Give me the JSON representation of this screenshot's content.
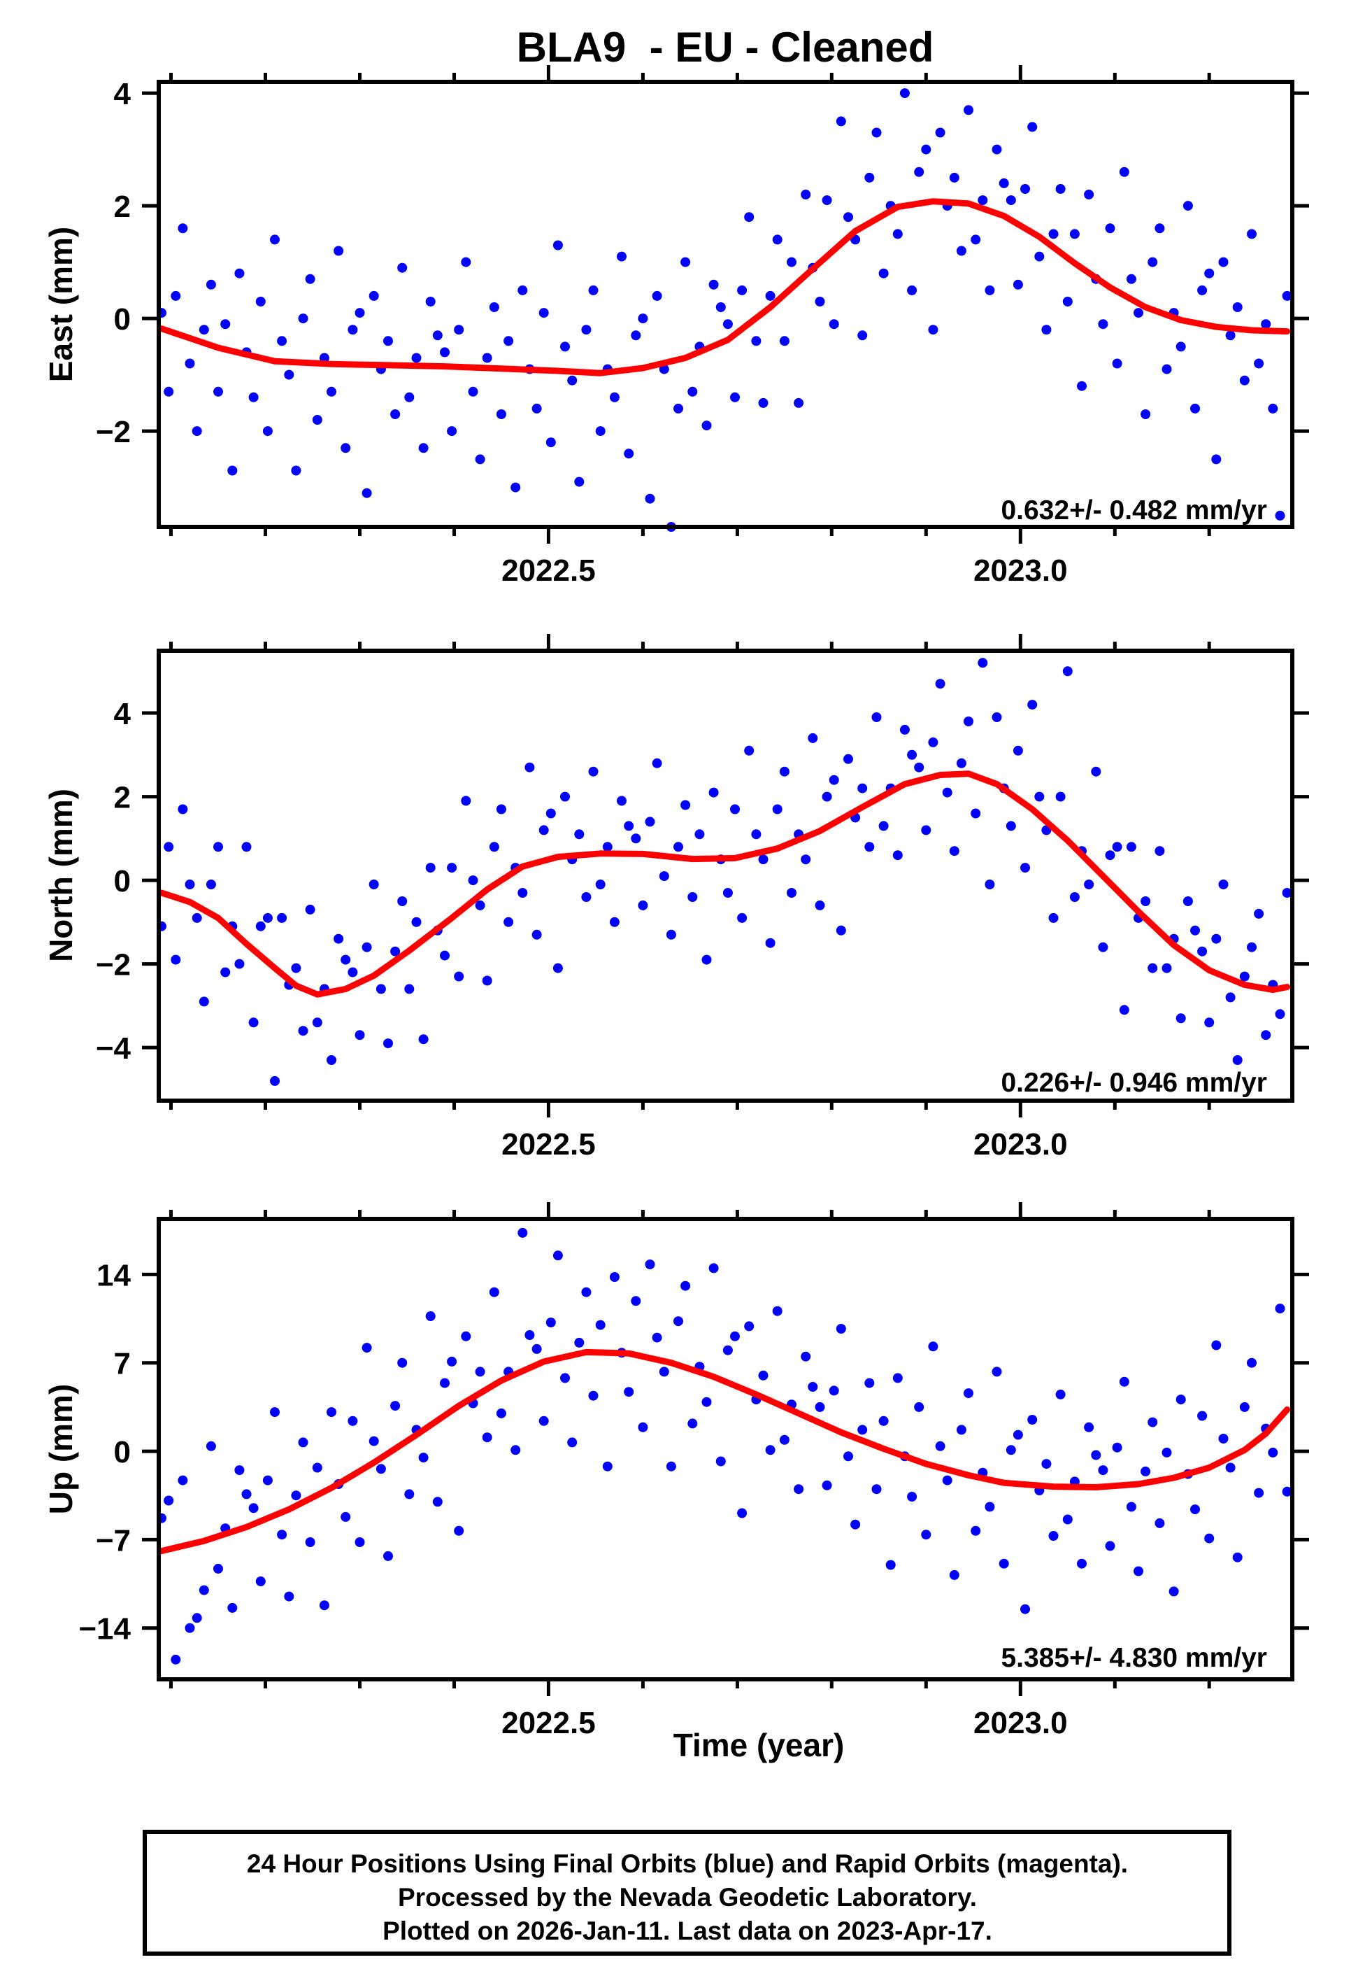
{
  "title": "BLA9  - EU - Cleaned",
  "time_axis_label": "Time (year)",
  "colors": {
    "points": "#0000ff",
    "trend": "#ff0000",
    "frame": "#000000",
    "background": "#ffffff"
  },
  "footer": {
    "line1": "24 Hour Positions Using Final Orbits (blue) and Rapid Orbits (magenta).",
    "line2": "Processed by the Nevada Geodetic Laboratory.",
    "line3": "Plotted on 2026-Jan-11. Last data on 2023-Apr-17."
  },
  "chart_data": [
    {
      "type": "scatter",
      "name": "east",
      "ylabel": "East (mm)",
      "rate_label": "0.632+/- 0.482 mm/yr",
      "xlim": [
        2022.087,
        2023.288
      ],
      "ylim": [
        -3.7,
        4.2
      ],
      "xticks_major": [
        2022.5,
        2023.0
      ],
      "xtick_labels": [
        "2022.5",
        "2023.0"
      ],
      "xticks_minor": [
        2022.1,
        2022.2,
        2022.3,
        2022.4,
        2022.6,
        2022.7,
        2022.8,
        2022.9,
        2023.1,
        2023.2
      ],
      "ytick_values": [
        4,
        2,
        0,
        -2
      ],
      "ytick_labels": [
        "4",
        "2",
        "0",
        "−2"
      ],
      "trend": [
        [
          2022.09,
          -0.18
        ],
        [
          2022.15,
          -0.52
        ],
        [
          2022.21,
          -0.76
        ],
        [
          2022.27,
          -0.81
        ],
        [
          2022.33,
          -0.83
        ],
        [
          2022.39,
          -0.85
        ],
        [
          2022.45,
          -0.89
        ],
        [
          2022.51,
          -0.93
        ],
        [
          2022.555,
          -0.97
        ],
        [
          2022.6,
          -0.88
        ],
        [
          2022.645,
          -0.7
        ],
        [
          2022.69,
          -0.38
        ],
        [
          2022.735,
          0.2
        ],
        [
          2022.78,
          0.88
        ],
        [
          2022.825,
          1.55
        ],
        [
          2022.87,
          1.98
        ],
        [
          2022.9075,
          2.08
        ],
        [
          2022.945,
          2.04
        ],
        [
          2022.9825,
          1.82
        ],
        [
          2023.02,
          1.45
        ],
        [
          2023.0575,
          0.98
        ],
        [
          2023.095,
          0.55
        ],
        [
          2023.1325,
          0.2
        ],
        [
          2023.17,
          -0.03
        ],
        [
          2023.2075,
          -0.15
        ],
        [
          2023.245,
          -0.21
        ],
        [
          2023.2825,
          -0.23
        ]
      ],
      "points": {
        "t0": 2022.09,
        "dt": 0.0075,
        "values": [
          0.1,
          -1.3,
          0.4,
          1.6,
          -0.8,
          -2.0,
          -0.2,
          0.6,
          -1.3,
          -0.1,
          -2.7,
          0.8,
          -0.6,
          -1.4,
          0.3,
          -2.0,
          1.4,
          -0.4,
          -1.0,
          -2.7,
          0.0,
          0.7,
          -1.8,
          -0.7,
          -1.3,
          1.2,
          -2.3,
          -0.2,
          0.1,
          -3.1,
          0.4,
          -0.9,
          -0.4,
          -1.7,
          0.9,
          -1.4,
          -0.7,
          -2.3,
          0.3,
          -0.3,
          -0.6,
          -2.0,
          -0.2,
          1.0,
          -1.3,
          -2.5,
          -0.7,
          0.2,
          -1.7,
          -0.4,
          -3.0,
          0.5,
          -0.9,
          -1.6,
          0.1,
          -2.2,
          1.3,
          -0.5,
          -1.1,
          -2.9,
          -0.2,
          0.5,
          -2.0,
          -0.9,
          -1.4,
          1.1,
          -2.4,
          -0.3,
          0.0,
          -3.2,
          0.4,
          -0.9,
          -3.7,
          -1.6,
          1.0,
          -1.3,
          -0.5,
          -1.9,
          0.6,
          0.2,
          -0.1,
          -1.4,
          0.5,
          1.8,
          -0.4,
          -1.5,
          0.4,
          1.4,
          -0.4,
          1.0,
          -1.5,
          2.2,
          0.9,
          0.3,
          2.1,
          -0.1,
          3.5,
          1.8,
          1.4,
          -0.3,
          2.5,
          3.3,
          0.8,
          2.0,
          1.5,
          4.0,
          0.5,
          2.6,
          3.0,
          -0.2,
          3.3,
          2.0,
          2.5,
          1.2,
          3.7,
          1.4,
          2.1,
          0.5,
          3.0,
          2.4,
          2.1,
          0.6,
          2.3,
          3.4,
          1.1,
          -0.2,
          1.5,
          2.3,
          0.3,
          1.5,
          -1.2,
          2.2,
          0.7,
          -0.1,
          1.6,
          -0.8,
          2.6,
          0.7,
          0.1,
          -1.7,
          1.0,
          1.6,
          -0.9,
          0.1,
          -0.5,
          2.0,
          -1.6,
          0.5,
          0.8,
          -2.5,
          1.0,
          -0.3,
          0.2,
          -1.1,
          1.5,
          -0.8,
          -0.1,
          -1.6,
          -3.5,
          0.4
        ]
      }
    },
    {
      "type": "scatter",
      "name": "north",
      "ylabel": "North (mm)",
      "rate_label": "0.226+/- 0.946 mm/yr",
      "xlim": [
        2022.087,
        2023.288
      ],
      "ylim": [
        -5.27,
        5.49
      ],
      "xticks_major": [
        2022.5,
        2023.0
      ],
      "xtick_labels": [
        "2022.5",
        "2023.0"
      ],
      "xticks_minor": [
        2022.1,
        2022.2,
        2022.3,
        2022.4,
        2022.6,
        2022.7,
        2022.8,
        2022.9,
        2023.1,
        2023.2
      ],
      "ytick_values": [
        4,
        2,
        0,
        -2,
        -4
      ],
      "ytick_labels": [
        "4",
        "2",
        "0",
        "−2",
        "−4"
      ],
      "trend": [
        [
          2022.09,
          -0.3
        ],
        [
          2022.12,
          -0.52
        ],
        [
          2022.15,
          -0.9
        ],
        [
          2022.18,
          -1.52
        ],
        [
          2022.21,
          -2.1
        ],
        [
          2022.2325,
          -2.52
        ],
        [
          2022.255,
          -2.73
        ],
        [
          2022.285,
          -2.6
        ],
        [
          2022.315,
          -2.28
        ],
        [
          2022.3525,
          -1.68
        ],
        [
          2022.3975,
          -0.9
        ],
        [
          2022.435,
          -0.22
        ],
        [
          2022.4725,
          0.33
        ],
        [
          2022.51,
          0.56
        ],
        [
          2022.555,
          0.64
        ],
        [
          2022.6,
          0.63
        ],
        [
          2022.6525,
          0.51
        ],
        [
          2022.6975,
          0.53
        ],
        [
          2022.7425,
          0.76
        ],
        [
          2022.7875,
          1.18
        ],
        [
          2022.8325,
          1.75
        ],
        [
          2022.8775,
          2.3
        ],
        [
          2022.915,
          2.52
        ],
        [
          2022.945,
          2.55
        ],
        [
          2022.975,
          2.3
        ],
        [
          2023.0125,
          1.7
        ],
        [
          2023.05,
          0.95
        ],
        [
          2023.0875,
          0.1
        ],
        [
          2023.125,
          -0.75
        ],
        [
          2023.1625,
          -1.55
        ],
        [
          2023.2,
          -2.15
        ],
        [
          2023.2375,
          -2.5
        ],
        [
          2023.2675,
          -2.62
        ],
        [
          2023.2825,
          -2.55
        ]
      ],
      "points": {
        "t0": 2022.09,
        "dt": 0.0075,
        "values": [
          -1.1,
          0.8,
          -1.9,
          1.7,
          -0.1,
          -0.9,
          -2.9,
          -0.1,
          0.8,
          -2.2,
          -1.1,
          -2.0,
          0.8,
          -3.4,
          -1.1,
          -0.9,
          -4.8,
          -0.9,
          -2.5,
          -2.1,
          -3.6,
          -0.7,
          -3.4,
          -2.6,
          -4.3,
          -1.4,
          -1.9,
          -2.2,
          -3.7,
          -1.6,
          -0.1,
          -2.6,
          -3.9,
          -1.7,
          -0.5,
          -2.6,
          -1.0,
          -3.8,
          0.3,
          -1.2,
          -1.8,
          0.3,
          -2.3,
          1.9,
          0.0,
          -0.6,
          -2.4,
          0.8,
          1.7,
          -1.0,
          0.3,
          -0.3,
          2.7,
          -1.3,
          1.2,
          1.6,
          -2.1,
          2.0,
          0.5,
          1.1,
          -0.4,
          2.6,
          -0.1,
          0.8,
          -1.0,
          1.9,
          1.3,
          1.0,
          -0.6,
          1.4,
          2.8,
          0.1,
          -1.3,
          0.8,
          1.8,
          -0.4,
          1.1,
          -1.9,
          2.1,
          0.5,
          -0.3,
          1.7,
          -0.9,
          3.1,
          1.1,
          0.5,
          -1.5,
          1.7,
          2.6,
          -0.3,
          1.1,
          0.5,
          3.4,
          -0.6,
          2.0,
          2.4,
          -1.2,
          2.9,
          1.5,
          2.2,
          0.8,
          3.9,
          1.3,
          2.2,
          0.6,
          3.6,
          3.0,
          2.7,
          1.2,
          3.3,
          4.7,
          2.1,
          0.7,
          2.8,
          3.8,
          1.6,
          5.2,
          -0.1,
          3.9,
          2.2,
          1.3,
          3.1,
          0.3,
          4.2,
          2.0,
          1.2,
          -0.9,
          2.0,
          5.0,
          -0.4,
          0.7,
          -0.1,
          2.6,
          -1.6,
          0.6,
          0.8,
          -3.1,
          0.8,
          -0.9,
          -0.5,
          -2.1,
          0.7,
          -2.1,
          -1.4,
          -3.3,
          -0.5,
          -1.2,
          -1.7,
          -3.4,
          -1.4,
          -0.1,
          -2.8,
          -4.3,
          -2.3,
          -1.6,
          -0.8,
          -3.7,
          -2.5,
          -3.2,
          -0.3
        ]
      }
    },
    {
      "type": "scatter",
      "name": "up",
      "ylabel": "Up (mm)",
      "rate_label": "5.385+/- 4.830 mm/yr",
      "xlim": [
        2022.087,
        2023.288
      ],
      "ylim": [
        -18.06,
        18.4
      ],
      "xticks_major": [
        2022.5,
        2023.0
      ],
      "xtick_labels": [
        "2022.5",
        "2023.0"
      ],
      "xticks_minor": [
        2022.1,
        2022.2,
        2022.3,
        2022.4,
        2022.6,
        2022.7,
        2022.8,
        2022.9,
        2023.1,
        2023.2
      ],
      "ytick_values": [
        14,
        7,
        0,
        -7,
        -14
      ],
      "ytick_labels": [
        "14",
        "7",
        "0",
        "−7",
        "−14"
      ],
      "trend": [
        [
          2022.09,
          -7.9
        ],
        [
          2022.135,
          -7.1
        ],
        [
          2022.18,
          -6.0
        ],
        [
          2022.225,
          -4.6
        ],
        [
          2022.27,
          -2.9
        ],
        [
          2022.315,
          -0.9
        ],
        [
          2022.36,
          1.3
        ],
        [
          2022.405,
          3.6
        ],
        [
          2022.45,
          5.6
        ],
        [
          2022.495,
          7.1
        ],
        [
          2022.54,
          7.85
        ],
        [
          2022.585,
          7.75
        ],
        [
          2022.63,
          7.0
        ],
        [
          2022.675,
          5.9
        ],
        [
          2022.72,
          4.5
        ],
        [
          2022.765,
          3.0
        ],
        [
          2022.81,
          1.5
        ],
        [
          2022.855,
          0.2
        ],
        [
          2022.9,
          -1.0
        ],
        [
          2022.945,
          -1.9
        ],
        [
          2022.9825,
          -2.5
        ],
        [
          2023.035,
          -2.8
        ],
        [
          2023.08,
          -2.85
        ],
        [
          2023.125,
          -2.6
        ],
        [
          2023.1625,
          -2.1
        ],
        [
          2023.2,
          -1.3
        ],
        [
          2023.2375,
          0.1
        ],
        [
          2023.26,
          1.4
        ],
        [
          2023.2825,
          3.3
        ]
      ],
      "points": {
        "t0": 2022.09,
        "dt": 0.0075,
        "values": [
          -5.3,
          -3.9,
          -16.5,
          -2.3,
          -14.0,
          -13.2,
          -11.0,
          0.4,
          -9.3,
          -6.1,
          -12.4,
          -1.5,
          -3.4,
          -4.5,
          -10.3,
          -2.3,
          3.1,
          -6.6,
          -11.5,
          -3.5,
          0.7,
          -7.2,
          -1.3,
          -12.2,
          3.1,
          -2.6,
          -5.2,
          2.4,
          -7.2,
          8.2,
          0.8,
          -1.4,
          -8.3,
          3.6,
          7.0,
          -3.4,
          1.7,
          -0.5,
          10.7,
          -4.0,
          5.4,
          7.1,
          -6.3,
          9.1,
          3.8,
          6.3,
          1.1,
          12.6,
          3.0,
          6.3,
          0.1,
          17.3,
          9.2,
          8.1,
          2.4,
          10.2,
          15.5,
          5.8,
          0.7,
          8.6,
          12.6,
          4.4,
          10.0,
          -1.2,
          13.8,
          7.8,
          4.7,
          11.9,
          1.9,
          14.8,
          9.0,
          6.3,
          -1.2,
          10.3,
          13.1,
          2.2,
          6.7,
          3.9,
          14.5,
          -0.8,
          8.0,
          9.1,
          -4.9,
          9.9,
          4.1,
          6.0,
          0.1,
          11.1,
          0.9,
          3.7,
          -3.0,
          7.5,
          5.1,
          3.5,
          -2.7,
          4.8,
          9.7,
          -0.4,
          -5.8,
          1.7,
          5.4,
          -3.0,
          2.4,
          -9.0,
          5.8,
          -0.4,
          -3.6,
          3.5,
          -6.6,
          8.3,
          0.4,
          -2.3,
          -9.8,
          1.7,
          4.6,
          -6.3,
          -1.7,
          -4.4,
          6.3,
          -8.9,
          0.1,
          1.3,
          -12.5,
          2.5,
          -3.1,
          -1.0,
          -6.7,
          4.5,
          -5.4,
          -2.4,
          -8.9,
          1.9,
          -0.3,
          -1.5,
          -7.5,
          0.3,
          5.5,
          -4.4,
          -9.5,
          -1.6,
          2.3,
          -5.7,
          -0.1,
          -11.1,
          4.1,
          -1.8,
          -4.6,
          2.8,
          -6.9,
          8.4,
          1.0,
          -1.3,
          -8.4,
          3.5,
          7.0,
          -3.3,
          1.8,
          -0.1,
          11.3,
          -3.2
        ]
      }
    }
  ]
}
